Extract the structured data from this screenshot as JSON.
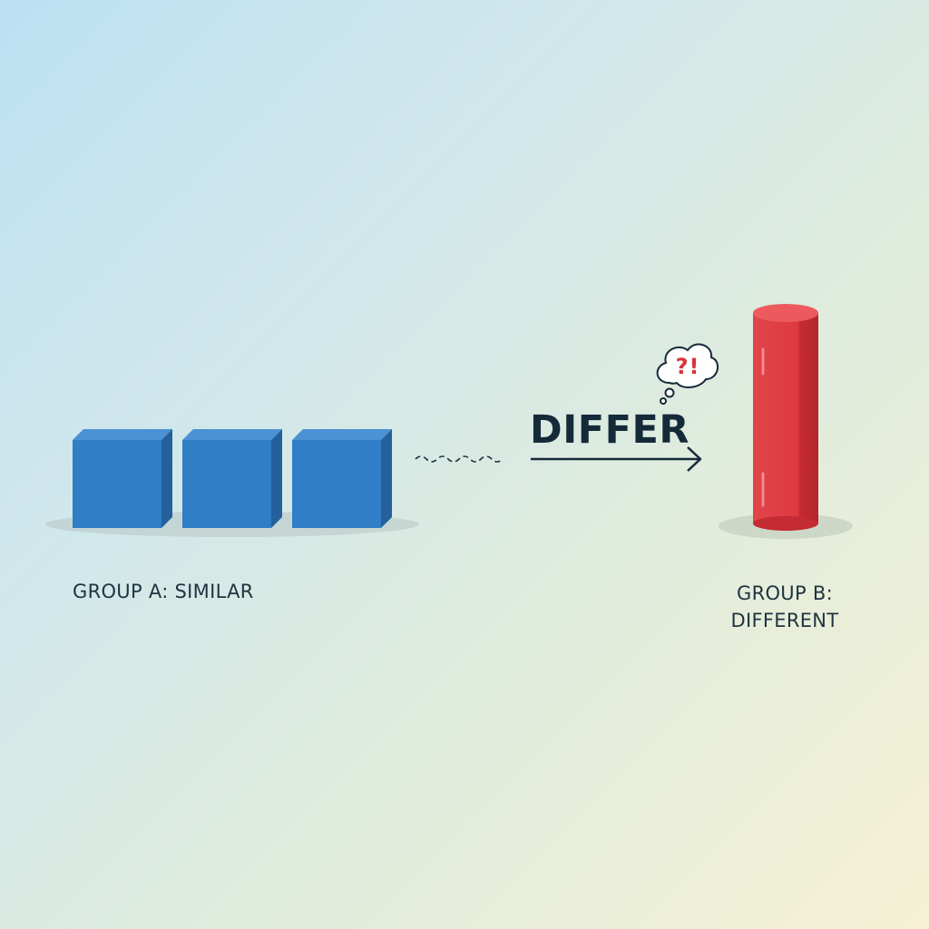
{
  "group_a": {
    "label": "GROUP A: SIMILAR",
    "item_count": 3,
    "color": "#2f7ec6"
  },
  "group_b": {
    "label_line1": "GROUP B:",
    "label_line2": "DIFFERENT",
    "color": "#dd3a40"
  },
  "connector": {
    "word": "DIFFER"
  },
  "thought_bubble": {
    "text": "?!",
    "color": "#d8353a"
  },
  "colors": {
    "text": "#1f3340",
    "arrow": "#152a38"
  }
}
